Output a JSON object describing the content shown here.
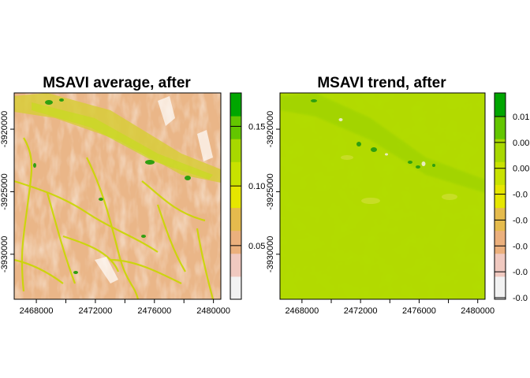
{
  "chart_data": [
    {
      "type": "heatmap",
      "title": "MSAVI average, after",
      "x_ticks": [
        2468000,
        2472000,
        2476000,
        2480000
      ],
      "x_tick_labels": [
        "2468000",
        "2472000",
        "2476000",
        "2480000"
      ],
      "y_ticks": [
        -3920000,
        -3925000,
        -3930000
      ],
      "y_tick_labels": [
        "-3920000",
        "-3925000",
        "-3930000"
      ],
      "xlim": [
        2466500,
        2480500
      ],
      "ylim": [
        -3933600,
        -3917100
      ],
      "legend": {
        "placement": "right",
        "range": [
          0.005,
          0.178
        ],
        "ticks": [
          0.05,
          0.1,
          0.15
        ],
        "tick_labels": [
          "0.05",
          "0.10",
          "0.15"
        ],
        "palette": [
          "#f2f2f2",
          "#f0c9c0",
          "#ebb07d",
          "#e5bb4d",
          "#e6e600",
          "#c8e200",
          "#a8d800",
          "#63c600",
          "#00a600"
        ]
      },
      "scene": "mostly tan/pink background with a diagonal greenish-yellow band from upper left to right and branching yellow-green drainage lines; dark green patches along the band"
    },
    {
      "type": "heatmap",
      "title": "MSAVI trend, after",
      "x_ticks": [
        2468000,
        2472000,
        2476000,
        2480000
      ],
      "x_tick_labels": [
        "2468000",
        "2472000",
        "2476000",
        "2480000"
      ],
      "y_ticks": [
        -3920000,
        -3925000,
        -3930000
      ],
      "y_tick_labels": [
        "-3920000",
        "-3925000",
        "-3930000"
      ],
      "xlim": [
        2466500,
        2480500
      ],
      "ylim": [
        -3933600,
        -3917100
      ],
      "legend": {
        "placement": "right",
        "tick_labels": [
          "0.01",
          "0.00",
          "0.00",
          "-0.0",
          "-0.0",
          "-0.0",
          "-0.0",
          "-0.0"
        ],
        "palette": [
          "#f2f2f2",
          "#f0c9c0",
          "#ebb07d",
          "#e5bb4d",
          "#e6e600",
          "#c8e200",
          "#a8d800",
          "#63c600",
          "#00a600"
        ]
      },
      "scene": "mostly uniform yellow-green with a slightly darker diagonal band and a few dark green and pale spots"
    }
  ]
}
